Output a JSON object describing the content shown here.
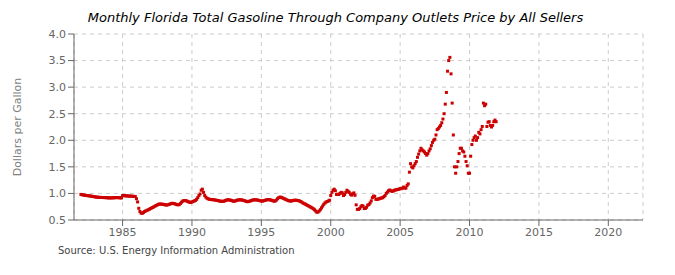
{
  "chart_data": {
    "type": "scatter",
    "title": "Monthly Florida Total Gasoline Through Company Outlets Price by All Sellers",
    "ylabel": "Dollars per Gallon",
    "annotations": [
      "Source: U.S. Energy Information Administration"
    ],
    "color": "#cc0000",
    "marker": "square",
    "grid": true,
    "xlim": [
      1981.5,
      2022.5
    ],
    "xticks": [
      1985,
      1990,
      1995,
      2000,
      2005,
      2010,
      2015,
      2020
    ],
    "ylim": [
      0.5,
      4.0
    ],
    "yticks": [
      0.5,
      {
        "value": 1.0,
        "label": "1.0"
      },
      1.5,
      {
        "value": 2.0,
        "label": "2.0"
      },
      2.5,
      {
        "value": 3.0,
        "label": "3.0"
      },
      3.5,
      {
        "value": 4.0,
        "label": "4.0"
      }
    ],
    "x": [
      1982.0,
      1982.083,
      1982.167,
      1982.25,
      1982.333,
      1982.417,
      1982.5,
      1982.583,
      1982.667,
      1982.75,
      1982.833,
      1982.917,
      1983.0,
      1983.083,
      1983.167,
      1983.25,
      1983.333,
      1983.417,
      1983.5,
      1983.583,
      1983.667,
      1983.75,
      1983.833,
      1983.917,
      1984.0,
      1984.083,
      1984.167,
      1984.25,
      1984.333,
      1984.417,
      1984.5,
      1984.583,
      1984.667,
      1984.75,
      1984.833,
      1984.917,
      1985.0,
      1985.083,
      1985.167,
      1985.25,
      1985.333,
      1985.417,
      1985.5,
      1985.583,
      1985.667,
      1985.75,
      1985.833,
      1985.917,
      1986.0,
      1986.083,
      1986.167,
      1986.25,
      1986.333,
      1986.417,
      1986.5,
      1986.583,
      1986.667,
      1986.75,
      1986.833,
      1986.917,
      1987.0,
      1987.083,
      1987.167,
      1987.25,
      1987.333,
      1987.417,
      1987.5,
      1987.583,
      1987.667,
      1987.75,
      1987.833,
      1987.917,
      1988.0,
      1988.083,
      1988.167,
      1988.25,
      1988.333,
      1988.417,
      1988.5,
      1988.583,
      1988.667,
      1988.75,
      1988.833,
      1988.917,
      1989.0,
      1989.083,
      1989.167,
      1989.25,
      1989.333,
      1989.417,
      1989.5,
      1989.583,
      1989.667,
      1989.75,
      1989.833,
      1989.917,
      1990.0,
      1990.083,
      1990.167,
      1990.25,
      1990.333,
      1990.417,
      1990.5,
      1990.583,
      1990.667,
      1990.75,
      1990.833,
      1990.917,
      1991.0,
      1991.083,
      1991.167,
      1991.25,
      1991.333,
      1991.417,
      1991.5,
      1991.583,
      1991.667,
      1991.75,
      1991.833,
      1991.917,
      1992.0,
      1992.083,
      1992.167,
      1992.25,
      1992.333,
      1992.417,
      1992.5,
      1992.583,
      1992.667,
      1992.75,
      1992.833,
      1992.917,
      1993.0,
      1993.083,
      1993.167,
      1993.25,
      1993.333,
      1993.417,
      1993.5,
      1993.583,
      1993.667,
      1993.75,
      1993.833,
      1993.917,
      1994.0,
      1994.083,
      1994.167,
      1994.25,
      1994.333,
      1994.417,
      1994.5,
      1994.583,
      1994.667,
      1994.75,
      1994.833,
      1994.917,
      1995.0,
      1995.083,
      1995.167,
      1995.25,
      1995.333,
      1995.417,
      1995.5,
      1995.583,
      1995.667,
      1995.75,
      1995.833,
      1995.917,
      1996.0,
      1996.083,
      1996.167,
      1996.25,
      1996.333,
      1996.417,
      1996.5,
      1996.583,
      1996.667,
      1996.75,
      1996.833,
      1996.917,
      1997.0,
      1997.083,
      1997.167,
      1997.25,
      1997.333,
      1997.417,
      1997.5,
      1997.583,
      1997.667,
      1997.75,
      1997.833,
      1997.917,
      1998.0,
      1998.083,
      1998.167,
      1998.25,
      1998.333,
      1998.417,
      1998.5,
      1998.583,
      1998.667,
      1998.75,
      1998.833,
      1998.917,
      1999.0,
      1999.083,
      1999.167,
      1999.25,
      1999.333,
      1999.417,
      1999.5,
      1999.583,
      1999.667,
      1999.75,
      1999.833,
      1999.917,
      2000.0,
      2000.083,
      2000.167,
      2000.25,
      2000.333,
      2000.417,
      2000.5,
      2000.583,
      2000.667,
      2000.75,
      2000.833,
      2000.917,
      2001.0,
      2001.083,
      2001.167,
      2001.25,
      2001.333,
      2001.417,
      2001.5,
      2001.583,
      2001.667,
      2001.75,
      2001.833,
      2001.917,
      2002.0,
      2002.083,
      2002.167,
      2002.25,
      2002.333,
      2002.417,
      2002.5,
      2002.583,
      2002.667,
      2002.75,
      2002.833,
      2002.917,
      2003.0,
      2003.083,
      2003.167,
      2003.25,
      2003.333,
      2003.417,
      2003.5,
      2003.583,
      2003.667,
      2003.75,
      2003.833,
      2003.917,
      2004.0,
      2004.083,
      2004.167,
      2004.25,
      2004.333,
      2004.417,
      2004.5,
      2004.583,
      2004.667,
      2004.75,
      2004.833,
      2004.917,
      2005.0,
      2005.083,
      2005.167,
      2005.25,
      2005.333,
      2005.417,
      2005.5,
      2005.583,
      2005.667,
      2005.75,
      2005.833,
      2005.917,
      2006.0,
      2006.083,
      2006.167,
      2006.25,
      2006.333,
      2006.417,
      2006.5,
      2006.583,
      2006.667,
      2006.75,
      2006.833,
      2006.917,
      2007.0,
      2007.083,
      2007.167,
      2007.25,
      2007.333,
      2007.417,
      2007.5,
      2007.583,
      2007.667,
      2007.75,
      2007.833,
      2007.917,
      2008.0,
      2008.083,
      2008.167,
      2008.25,
      2008.333,
      2008.417,
      2008.5,
      2008.583,
      2008.667,
      2008.75,
      2008.833,
      2008.917,
      2009.0,
      2009.083,
      2009.167,
      2009.25,
      2009.333,
      2009.417,
      2009.5,
      2009.583,
      2009.667,
      2009.75,
      2009.833,
      2009.917,
      2010.0,
      2010.083,
      2010.167,
      2010.25,
      2010.333,
      2010.417,
      2010.5,
      2010.583,
      2010.667,
      2010.75,
      2010.833,
      2010.917,
      2011.0,
      2011.083,
      2011.167,
      2011.25,
      2011.333,
      2011.417,
      2011.5,
      2011.583,
      2011.667,
      2011.75,
      2011.833,
      2011.917
    ],
    "values": [
      0.982,
      0.975,
      0.972,
      0.968,
      0.964,
      0.96,
      0.958,
      0.955,
      0.952,
      0.948,
      0.944,
      0.94,
      0.936,
      0.932,
      0.93,
      0.928,
      0.926,
      0.925,
      0.924,
      0.923,
      0.922,
      0.921,
      0.92,
      0.918,
      0.917,
      0.916,
      0.916,
      0.917,
      0.918,
      0.919,
      0.921,
      0.922,
      0.921,
      0.919,
      0.917,
      0.915,
      0.96,
      0.958,
      0.956,
      0.955,
      0.953,
      0.951,
      0.95,
      0.95,
      0.948,
      0.946,
      0.944,
      0.942,
      0.9,
      0.84,
      0.72,
      0.66,
      0.63,
      0.625,
      0.64,
      0.66,
      0.67,
      0.68,
      0.69,
      0.7,
      0.715,
      0.725,
      0.735,
      0.748,
      0.76,
      0.772,
      0.784,
      0.795,
      0.8,
      0.8,
      0.798,
      0.795,
      0.79,
      0.785,
      0.782,
      0.785,
      0.792,
      0.8,
      0.81,
      0.815,
      0.81,
      0.805,
      0.798,
      0.79,
      0.785,
      0.79,
      0.81,
      0.835,
      0.855,
      0.865,
      0.868,
      0.862,
      0.852,
      0.842,
      0.835,
      0.828,
      0.84,
      0.85,
      0.858,
      0.868,
      0.89,
      0.92,
      0.96,
      0.99,
      1.06,
      1.08,
      1.02,
      0.96,
      0.93,
      0.91,
      0.898,
      0.89,
      0.886,
      0.884,
      0.882,
      0.88,
      0.876,
      0.872,
      0.868,
      0.862,
      0.856,
      0.853,
      0.852,
      0.852,
      0.856,
      0.868,
      0.876,
      0.88,
      0.878,
      0.875,
      0.868,
      0.86,
      0.852,
      0.856,
      0.864,
      0.872,
      0.878,
      0.88,
      0.88,
      0.878,
      0.872,
      0.866,
      0.858,
      0.85,
      0.844,
      0.848,
      0.855,
      0.864,
      0.872,
      0.878,
      0.88,
      0.88,
      0.878,
      0.874,
      0.868,
      0.862,
      0.856,
      0.858,
      0.862,
      0.868,
      0.876,
      0.882,
      0.884,
      0.882,
      0.876,
      0.87,
      0.862,
      0.854,
      0.858,
      0.875,
      0.9,
      0.92,
      0.93,
      0.928,
      0.918,
      0.908,
      0.898,
      0.888,
      0.878,
      0.868,
      0.86,
      0.858,
      0.858,
      0.864,
      0.87,
      0.872,
      0.872,
      0.868,
      0.864,
      0.858,
      0.848,
      0.835,
      0.82,
      0.808,
      0.798,
      0.786,
      0.774,
      0.762,
      0.75,
      0.738,
      0.725,
      0.71,
      0.692,
      0.668,
      0.645,
      0.65,
      0.668,
      0.695,
      0.728,
      0.762,
      0.796,
      0.82,
      0.838,
      0.848,
      0.858,
      0.872,
      0.962,
      1.02,
      1.06,
      1.08,
      1.05,
      0.98,
      0.985,
      0.98,
      1.0,
      1.02,
      1.01,
      0.96,
      0.98,
      1.02,
      1.06,
      1.04,
      1.02,
      0.985,
      0.968,
      0.992,
      1.01,
      0.965,
      0.785,
      0.7,
      0.7,
      0.715,
      0.748,
      0.772,
      0.76,
      0.715,
      0.72,
      0.74,
      0.78,
      0.79,
      0.82,
      0.86,
      0.92,
      0.95,
      0.945,
      0.89,
      0.885,
      0.895,
      0.9,
      0.91,
      0.915,
      0.92,
      0.94,
      0.96,
      1.0,
      1.025,
      1.05,
      1.065,
      1.05,
      1.04,
      1.045,
      1.06,
      1.065,
      1.07,
      1.075,
      1.08,
      1.09,
      1.09,
      1.1,
      1.12,
      1.1,
      1.1,
      1.15,
      1.18,
      1.4,
      1.56,
      1.5,
      1.48,
      1.52,
      1.56,
      1.6,
      1.68,
      1.74,
      1.8,
      1.85,
      1.82,
      1.8,
      1.78,
      1.75,
      1.72,
      1.75,
      1.8,
      1.84,
      1.9,
      1.96,
      2.0,
      2.02,
      2.1,
      2.2,
      2.22,
      2.25,
      2.28,
      2.33,
      2.4,
      2.5,
      2.68,
      2.9,
      3.3,
      3.5,
      3.56,
      3.25,
      2.7,
      2.1,
      1.5,
      1.38,
      1.5,
      1.6,
      1.75,
      1.85,
      1.85,
      1.8,
      1.78,
      1.7,
      1.6,
      1.52,
      1.38,
      1.38,
      1.7,
      1.92,
      2.0,
      2.05,
      2.08,
      2.0,
      2.05,
      2.15,
      2.12,
      2.2,
      2.26,
      2.7,
      2.65,
      2.68,
      2.26,
      2.34,
      2.35,
      2.28,
      2.25,
      2.28,
      2.35,
      2.38,
      2.35
    ]
  }
}
